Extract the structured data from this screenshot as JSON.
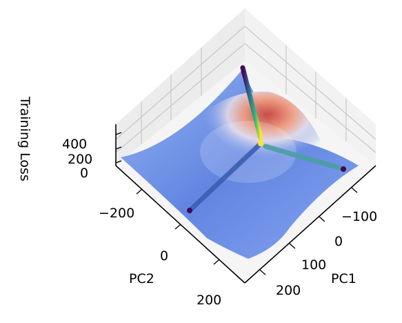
{
  "chart_data": {
    "type": "surface",
    "xlabel": "PC1",
    "ylabel": "PC2",
    "zlabel": "Training Loss",
    "x_ticks": [
      "−100",
      "0",
      "100",
      "200"
    ],
    "y_ticks": [
      "−200",
      "0",
      "200"
    ],
    "z_ticks": [
      "400",
      "200",
      "0"
    ],
    "colormap": "coolwarm",
    "trajectory_colormap": "viridis",
    "grid": true,
    "trajectories": [
      {
        "start": [
          -150,
          -60
        ],
        "end": [
          60,
          -20
        ]
      },
      {
        "start": [
          -120,
          -230
        ],
        "end": [
          60,
          -20
        ]
      },
      {
        "start": [
          220,
          40
        ],
        "end": [
          60,
          -20
        ]
      }
    ]
  }
}
